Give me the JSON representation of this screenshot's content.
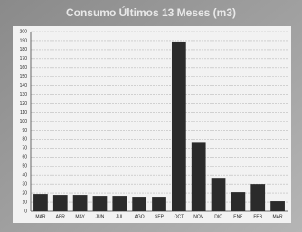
{
  "chart_data": {
    "type": "bar",
    "title": "Consumo Últimos 13 Meses (m3)",
    "categories": [
      "MAR",
      "ABR",
      "MAY",
      "JUN",
      "JUL",
      "AGO",
      "SEP",
      "OCT",
      "NOV",
      "DIC",
      "ENE",
      "FEB",
      "MAR"
    ],
    "values": [
      19,
      18,
      18,
      17,
      17,
      16,
      16,
      189,
      77,
      37,
      21,
      30,
      11
    ],
    "color": "#2b2b2b",
    "ylim": [
      0,
      200
    ],
    "yticks": [
      0,
      10,
      20,
      30,
      40,
      50,
      60,
      70,
      80,
      90,
      100,
      110,
      120,
      130,
      140,
      150,
      160,
      170,
      180,
      190,
      200
    ],
    "grid": true
  }
}
